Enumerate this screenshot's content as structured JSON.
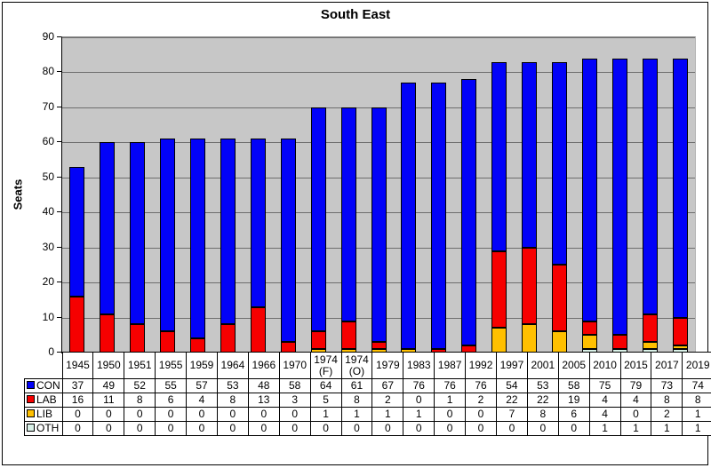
{
  "chart_data": {
    "type": "bar",
    "stacked": true,
    "title": "South East",
    "ylabel": "Seats",
    "ylim": [
      0,
      90
    ],
    "ytick_step": 10,
    "yticks": [
      0,
      10,
      20,
      30,
      40,
      50,
      60,
      70,
      80,
      90
    ],
    "grid": true,
    "plot_bg": "#c7c7c7",
    "legend_position": "data-table-left",
    "categories": [
      "1945",
      "1950",
      "1951",
      "1955",
      "1959",
      "1964",
      "1966",
      "1970",
      "1974 (F)",
      "1974 (O)",
      "1979",
      "1983",
      "1987",
      "1992",
      "1997",
      "2001",
      "2005",
      "2010",
      "2015",
      "2017",
      "2019"
    ],
    "series": [
      {
        "name": "CON",
        "color": "#0202f8",
        "values": [
          37,
          49,
          52,
          55,
          57,
          53,
          48,
          58,
          64,
          61,
          67,
          76,
          76,
          76,
          54,
          53,
          58,
          75,
          79,
          73,
          74
        ]
      },
      {
        "name": "LAB",
        "color": "#f60000",
        "values": [
          16,
          11,
          8,
          6,
          4,
          8,
          13,
          3,
          5,
          8,
          2,
          0,
          1,
          2,
          22,
          22,
          19,
          4,
          4,
          8,
          8
        ]
      },
      {
        "name": "LIB",
        "color": "#ffc000",
        "values": [
          0,
          0,
          0,
          0,
          0,
          0,
          0,
          0,
          1,
          1,
          1,
          1,
          0,
          0,
          7,
          8,
          6,
          4,
          0,
          2,
          1
        ]
      },
      {
        "name": "OTH",
        "color": "#d9f1e8",
        "values": [
          0,
          0,
          0,
          0,
          0,
          0,
          0,
          0,
          0,
          0,
          0,
          0,
          0,
          0,
          0,
          0,
          0,
          1,
          1,
          1,
          1
        ]
      }
    ],
    "stack_order_bottom_to_top": [
      "OTH",
      "LIB",
      "LAB",
      "CON"
    ]
  }
}
